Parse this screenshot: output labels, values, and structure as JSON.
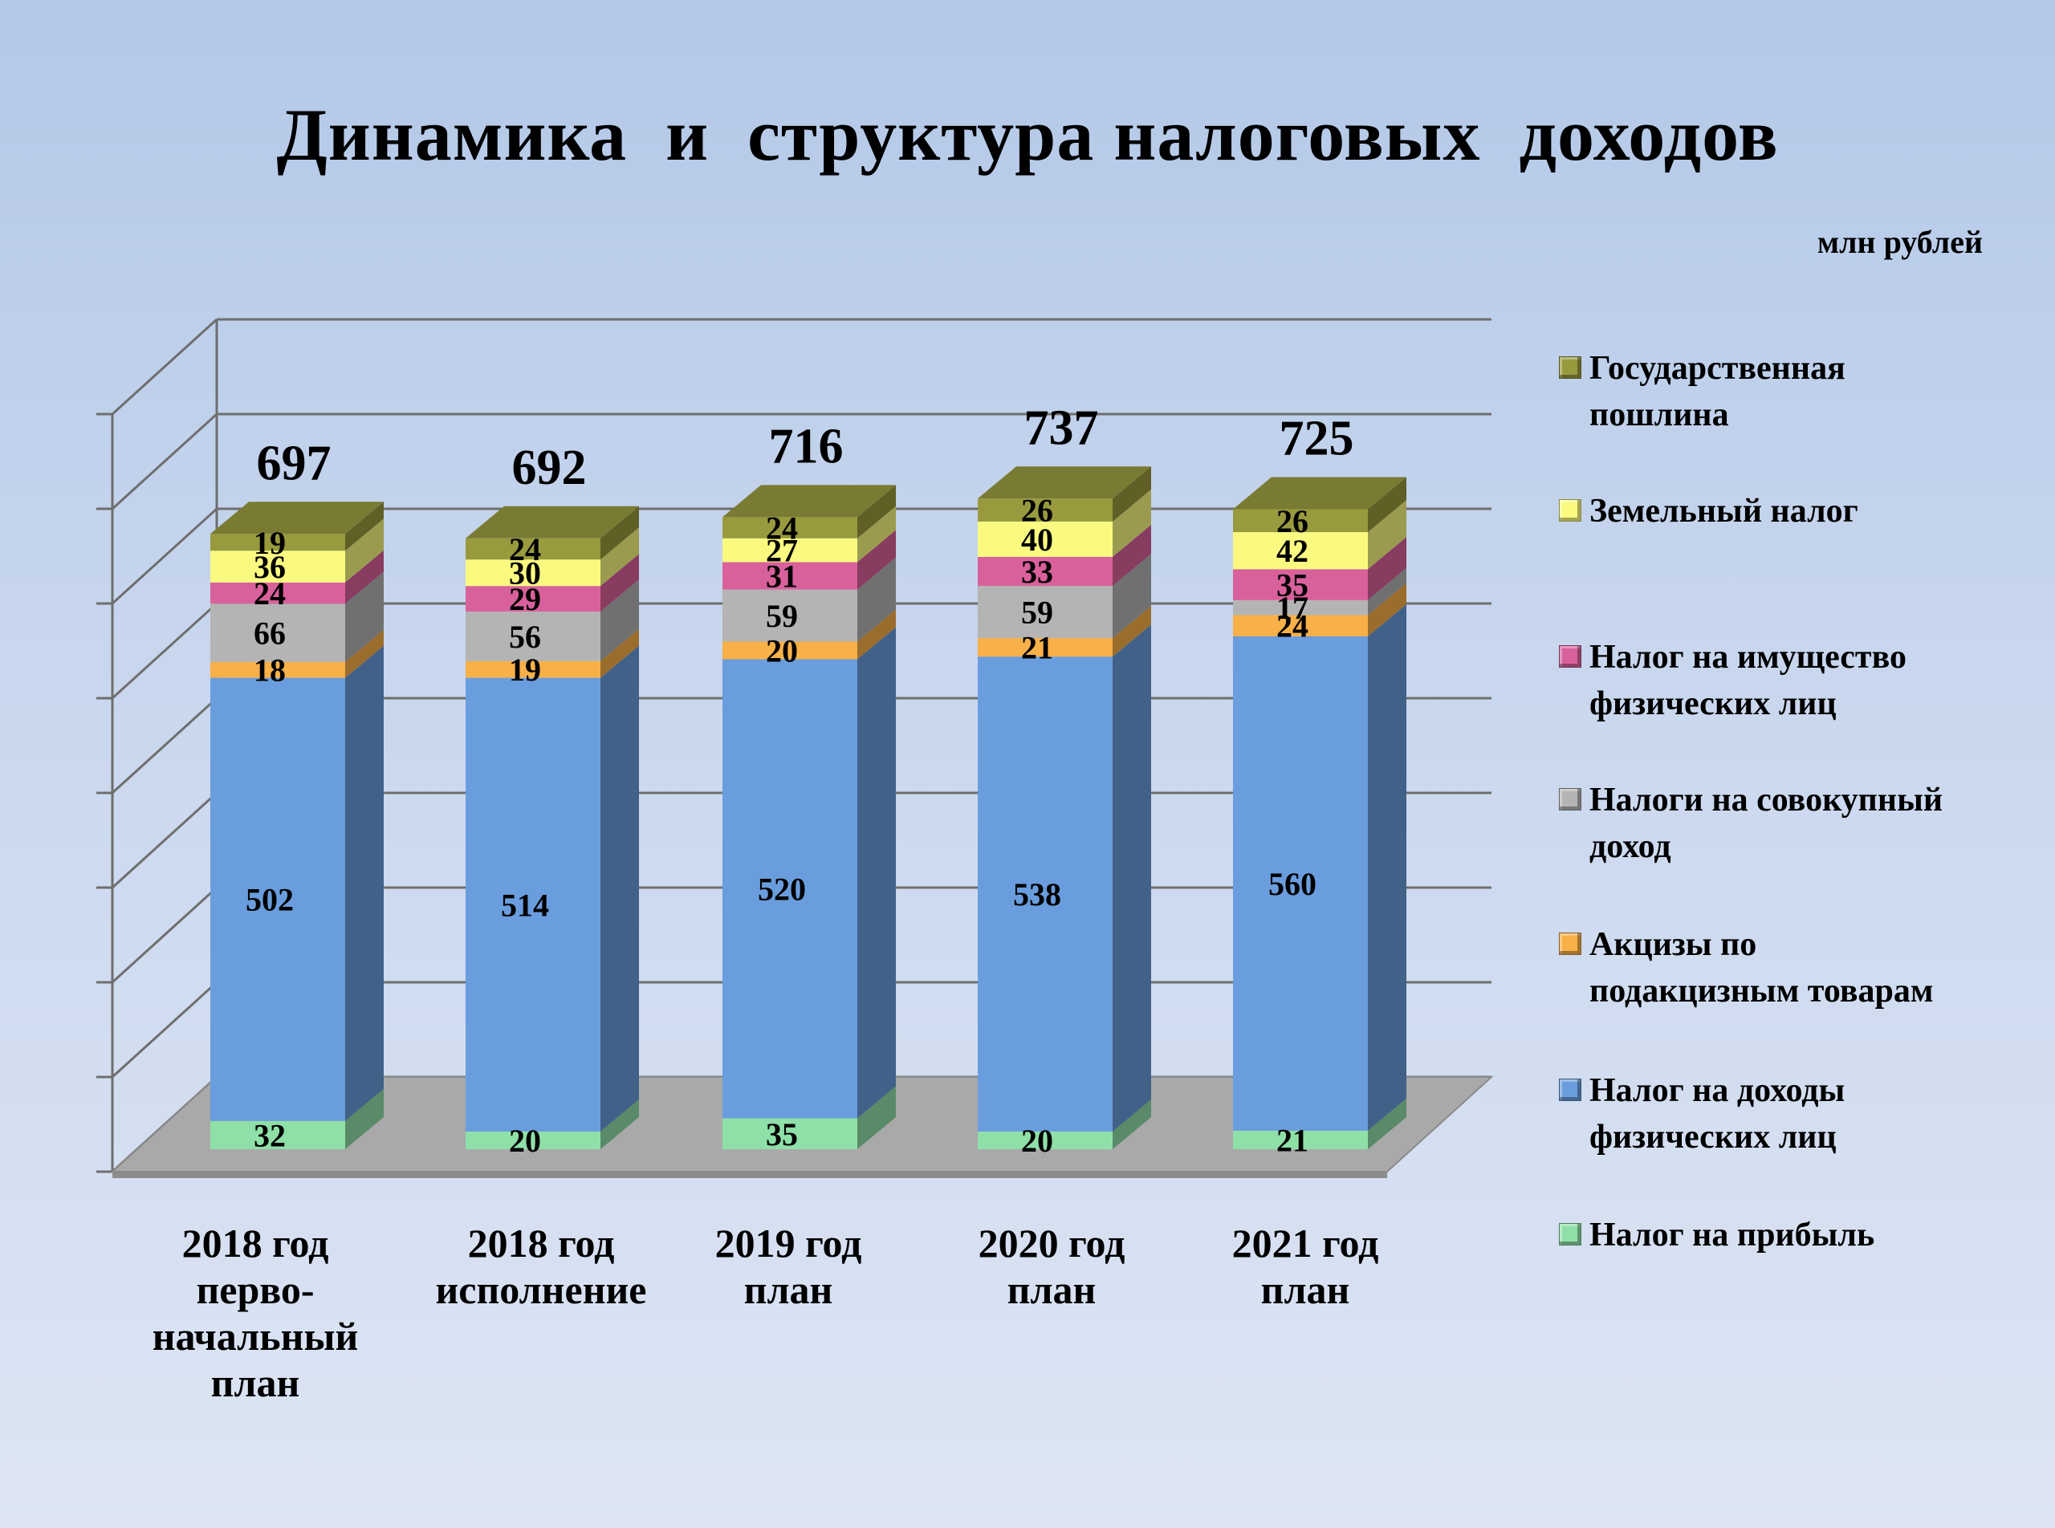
{
  "title": "Динамика  и  структура налоговых  доходов",
  "units": "млн рублей",
  "chart_data": {
    "type": "bar",
    "stacked": true,
    "three_d": true,
    "categories": [
      "2018 год перво-начальный план",
      "2018 год исполнение",
      "2019 год план",
      "2020 год план",
      "2021 год план"
    ],
    "category_lines": [
      [
        "2018 год",
        "перво-",
        "начальный",
        "план"
      ],
      [
        "2018 год",
        "исполнение"
      ],
      [
        "2019 год",
        "план"
      ],
      [
        "2020 год",
        "план"
      ],
      [
        "2021 год",
        "план"
      ]
    ],
    "totals": [
      "697",
      "692",
      "716",
      "737",
      "725"
    ],
    "series": [
      {
        "name": "Налог на прибыль",
        "color": "#8fe0a8",
        "values": [
          32,
          20,
          35,
          20,
          21
        ]
      },
      {
        "name": "Налог на доходы физических лиц",
        "color": "#6a9ddd",
        "values": [
          502,
          514,
          520,
          538,
          560
        ]
      },
      {
        "name": "Акцизы по подакцизным товарам",
        "color": "#f8b048",
        "values": [
          18,
          19,
          20,
          21,
          24
        ]
      },
      {
        "name": "Налоги на совокупный доход",
        "color": "#b4b4b4",
        "values": [
          66,
          56,
          59,
          59,
          17
        ]
      },
      {
        "name": "Налог на имущество физических лиц",
        "color": "#d9619b",
        "values": [
          24,
          29,
          31,
          33,
          35
        ]
      },
      {
        "name": "Земельный налог",
        "color": "#fafa80",
        "values": [
          36,
          30,
          27,
          40,
          42
        ]
      },
      {
        "name": "Государственная пошлина",
        "color": "#999a3e",
        "values": [
          19,
          24,
          24,
          26,
          26
        ]
      }
    ],
    "legend": {
      "position": "right",
      "items": [
        {
          "lines": [
            "Государственная",
            "пошлина"
          ],
          "color": "#999a3e"
        },
        {
          "lines": [
            "Земельный налог"
          ],
          "color": "#fafa80"
        },
        {
          "lines": [
            "Налог на имущество",
            "физических лиц"
          ],
          "color": "#d9619b"
        },
        {
          "lines": [
            "Налоги на совокупный",
            "доход"
          ],
          "color": "#b4b4b4"
        },
        {
          "lines": [
            "Акцизы по",
            "подакцизным товарам"
          ],
          "color": "#f8b048"
        },
        {
          "lines": [
            "Налог на доходы",
            "физических лиц"
          ],
          "color": "#6a9ddd"
        },
        {
          "lines": [
            "Налог на прибыль"
          ],
          "color": "#8fe0a8"
        }
      ]
    },
    "grid": true
  }
}
